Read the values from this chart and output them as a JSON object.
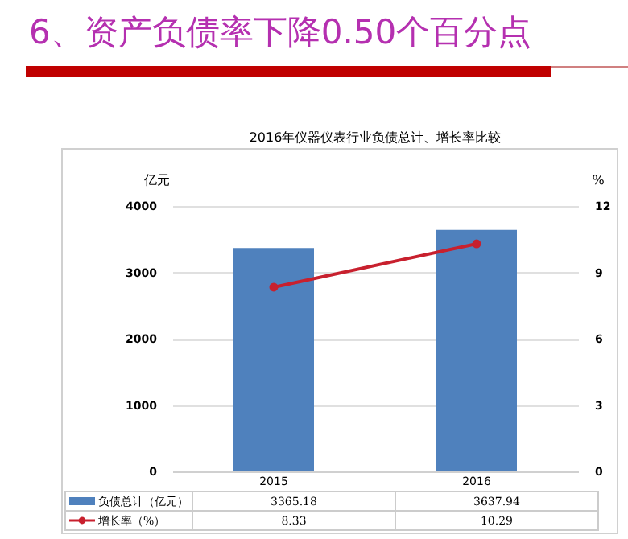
{
  "chart_data": {
    "type": "bar",
    "title": "2016年仪器仪表行业负债总计、增长率比较",
    "subtitle": "6、资产负债率下降0.50个百分点",
    "categories": [
      "2015",
      "2016"
    ],
    "series": [
      {
        "name": "负债总计（亿元）",
        "color": "#4f81bd",
        "values": [
          3365.18,
          3637.94
        ]
      },
      {
        "name": "增长率（%）",
        "type": "line",
        "axis": "y2",
        "color": "#c8202e",
        "values": [
          8.33,
          10.29
        ]
      }
    ],
    "ylabel": "亿元",
    "y2label": "%",
    "ylim": [
      0,
      4000
    ],
    "yticks": [
      0,
      1000,
      2000,
      3000,
      4000
    ],
    "y2lim": [
      0,
      12
    ],
    "y2ticks": [
      0,
      3,
      6,
      9,
      12
    ],
    "grid": "y",
    "legend": "bottom",
    "marker": "circle",
    "line_style": "solid",
    "data_labels": true
  }
}
